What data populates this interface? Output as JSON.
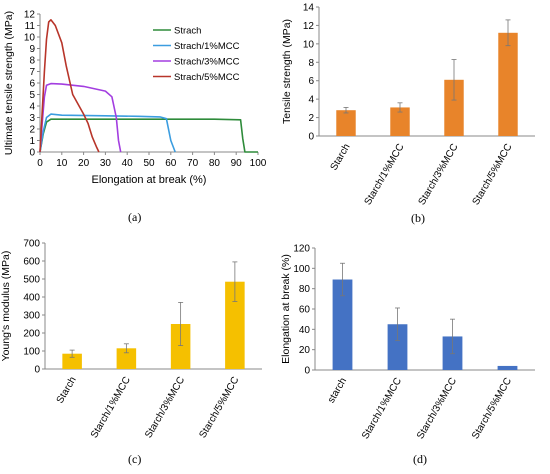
{
  "chart_data": [
    {
      "type": "line",
      "panel_label": "(a)",
      "xlabel": "Elongation at break (%)",
      "ylabel": "Ultimate tensile strength (MPa)",
      "xlim": [
        0,
        100
      ],
      "ylim": [
        0,
        12
      ],
      "xticks": [
        "0",
        "10",
        "20",
        "30",
        "40",
        "50",
        "60",
        "70",
        "80",
        "90",
        "100"
      ],
      "yticks": [
        "0",
        "1",
        "2",
        "3",
        "4",
        "5",
        "6",
        "7",
        "8",
        "9",
        "10",
        "11",
        "12"
      ],
      "legend_position": "top-right",
      "series": [
        {
          "name": "Strach",
          "color": "#2e8b3a",
          "x": [
            0,
            1.5,
            3,
            5,
            10,
            30,
            60,
            80,
            92,
            93,
            94,
            100
          ],
          "y": [
            0,
            1.6,
            2.6,
            2.85,
            2.85,
            2.85,
            2.85,
            2.85,
            2.8,
            1.2,
            0,
            0
          ]
        },
        {
          "name": "Strach/1%MCC",
          "color": "#3b9de0",
          "x": [
            0,
            1.5,
            3,
            5,
            10,
            30,
            45,
            55,
            58,
            60,
            62
          ],
          "y": [
            0,
            1.8,
            3.0,
            3.3,
            3.2,
            3.15,
            3.1,
            3.05,
            2.9,
            1.0,
            0
          ]
        },
        {
          "name": "Strach/3%MCC",
          "color": "#a33ee0",
          "x": [
            0,
            1,
            2,
            3,
            5,
            10,
            20,
            30,
            33,
            35,
            36,
            37
          ],
          "y": [
            0,
            2.5,
            4.8,
            5.8,
            5.95,
            5.9,
            5.7,
            5.3,
            4.8,
            3.0,
            1.0,
            0
          ]
        },
        {
          "name": "Strach/5%MCC",
          "color": "#b8352a",
          "x": [
            0,
            1,
            2,
            3,
            4,
            5,
            7,
            10,
            12,
            15,
            20,
            22,
            24,
            26,
            27
          ],
          "y": [
            0,
            3.5,
            7.0,
            9.8,
            11.3,
            11.5,
            11.0,
            9.5,
            7.5,
            5.0,
            3.3,
            2.5,
            1.3,
            0.4,
            0
          ]
        }
      ]
    },
    {
      "type": "bar",
      "panel_label": "(b)",
      "ylabel": "Tensile strength (MPa)",
      "ylim": [
        0,
        14
      ],
      "yticks": [
        "0",
        "2",
        "4",
        "6",
        "8",
        "10",
        "12",
        "14"
      ],
      "categories": [
        "Starch",
        "Starch/1%MCC",
        "Starch/3%MCC",
        "Starch/5%MCC"
      ],
      "values": [
        2.8,
        3.1,
        6.1,
        11.2
      ],
      "errors": [
        0.3,
        0.5,
        2.2,
        1.4
      ],
      "color": "#e8842a"
    },
    {
      "type": "bar",
      "panel_label": "(c)",
      "ylabel": "Young's modulus (MPa)",
      "ylim": [
        0,
        700
      ],
      "yticks": [
        "0",
        "100",
        "200",
        "300",
        "400",
        "500",
        "600",
        "700"
      ],
      "categories": [
        "Starch",
        "Starch/1%MCC",
        "Starch/3%MCC",
        "Starch/5%MCC"
      ],
      "values": [
        85,
        115,
        250,
        485
      ],
      "errors": [
        20,
        25,
        120,
        110
      ],
      "color": "#f5c000"
    },
    {
      "type": "bar",
      "panel_label": "(d)",
      "ylabel": "Elongation at break (%)",
      "ylim": [
        0,
        120
      ],
      "yticks": [
        "0",
        "20",
        "40",
        "60",
        "80",
        "100",
        "120"
      ],
      "categories": [
        "starch",
        "Starch/1%MCC",
        "Starch/3%MCC",
        "Starch/5%MCC"
      ],
      "values": [
        89,
        45,
        33,
        4
      ],
      "errors": [
        16,
        16,
        17,
        0
      ],
      "color": "#4472c4"
    }
  ]
}
